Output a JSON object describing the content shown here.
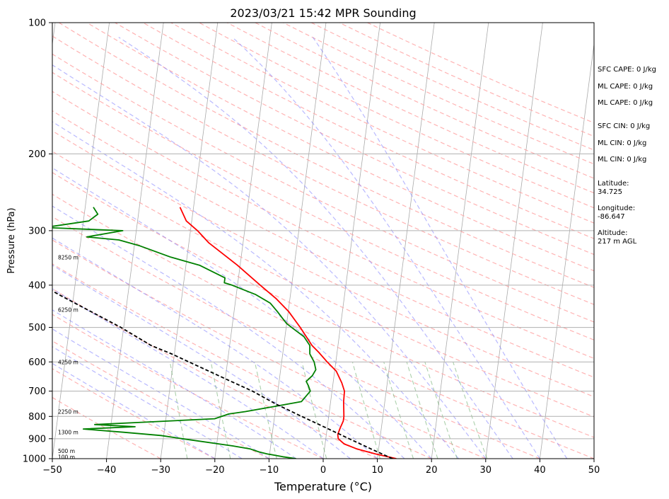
{
  "chart_data": {
    "type": "line",
    "title": "2023/03/21 15:42 MPR Sounding",
    "xlabel": "Temperature (°C)",
    "ylabel": "Pressure (hPa)",
    "xlim": [
      -50,
      50
    ],
    "ylim": [
      1000,
      100
    ],
    "y_scale": "log",
    "skew": "skew-T log-p",
    "x_ticks": [
      -50,
      -40,
      -30,
      -20,
      -10,
      0,
      10,
      20,
      30,
      40,
      50
    ],
    "x_tick_labels": [
      "−50",
      "−40",
      "−30",
      "−20",
      "−10",
      "0",
      "10",
      "20",
      "30",
      "40",
      "50"
    ],
    "y_ticks": [
      1000,
      900,
      800,
      700,
      600,
      500,
      400,
      300,
      200,
      100
    ],
    "y_tick_labels": [
      "1000",
      "900",
      "800",
      "700",
      "600",
      "500",
      "400",
      "300",
      "200",
      "100"
    ],
    "grid": true,
    "height_labels": [
      {
        "p": 990,
        "text": "100 m"
      },
      {
        "p": 960,
        "text": "500 m"
      },
      {
        "p": 870,
        "text": "1300 m"
      },
      {
        "p": 780,
        "text": "2250 m"
      },
      {
        "p": 600,
        "text": "4250 m"
      },
      {
        "p": 455,
        "text": "6250 m"
      },
      {
        "p": 345,
        "text": "8250 m"
      }
    ],
    "series": [
      {
        "key": "temperature",
        "color": "#ff0000",
        "points": [
          [
            13.5,
            1000
          ],
          [
            9.5,
            975
          ],
          [
            6.0,
            950
          ],
          [
            3.5,
            925
          ],
          [
            2.3,
            900
          ],
          [
            2.1,
            880
          ],
          [
            2.4,
            850
          ],
          [
            2.8,
            820
          ],
          [
            2.8,
            800
          ],
          [
            2.6,
            770
          ],
          [
            2.4,
            740
          ],
          [
            2.3,
            700
          ],
          [
            1.6,
            670
          ],
          [
            0.3,
            630
          ],
          [
            -1.6,
            600
          ],
          [
            -3.4,
            570
          ],
          [
            -4.8,
            550
          ],
          [
            -7.4,
            500
          ],
          [
            -9.9,
            460
          ],
          [
            -12.5,
            430
          ],
          [
            -15.8,
            400
          ],
          [
            -20.5,
            360
          ],
          [
            -26.3,
            320
          ],
          [
            -28.7,
            300
          ],
          [
            -31.0,
            285
          ],
          [
            -32.5,
            265
          ]
        ]
      },
      {
        "key": "dewpoint",
        "color": "#008000",
        "points": [
          [
            -5.0,
            1000
          ],
          [
            -7.5,
            990
          ],
          [
            -10.5,
            975
          ],
          [
            -12.0,
            965
          ],
          [
            -13.7,
            950
          ],
          [
            -17.0,
            935
          ],
          [
            -26.5,
            900
          ],
          [
            -30.5,
            885
          ],
          [
            -37.5,
            870
          ],
          [
            -45.0,
            855
          ],
          [
            -35.5,
            845
          ],
          [
            -43.0,
            835
          ],
          [
            -34.0,
            825
          ],
          [
            -21.0,
            810
          ],
          [
            -18.5,
            790
          ],
          [
            -15.5,
            780
          ],
          [
            -10.5,
            760
          ],
          [
            -5.4,
            740
          ],
          [
            -4.0,
            700
          ],
          [
            -4.5,
            680
          ],
          [
            -5.0,
            665
          ],
          [
            -4.0,
            645
          ],
          [
            -3.5,
            625
          ],
          [
            -4.0,
            600
          ],
          [
            -5.0,
            575
          ],
          [
            -5.2,
            550
          ],
          [
            -6.5,
            525
          ],
          [
            -8.5,
            505
          ],
          [
            -10.0,
            490
          ],
          [
            -11.0,
            475
          ],
          [
            -12.0,
            460
          ],
          [
            -13.5,
            440
          ],
          [
            -16.5,
            420
          ],
          [
            -21.0,
            400
          ],
          [
            -22.5,
            395
          ],
          [
            -22.5,
            385
          ],
          [
            -27.5,
            360
          ],
          [
            -33.0,
            345
          ],
          [
            -39.0,
            325
          ],
          [
            -43.0,
            315
          ],
          [
            -49.0,
            310
          ],
          [
            -42.5,
            300
          ],
          [
            -57.0,
            295
          ],
          [
            -49.0,
            285
          ],
          [
            -47.5,
            275
          ],
          [
            -48.5,
            265
          ]
        ]
      },
      {
        "key": "parcel",
        "color": "#000000",
        "dash": "dashed",
        "points": [
          [
            12.8,
            1000
          ],
          [
            8.6,
            950
          ],
          [
            4.3,
            900
          ],
          [
            -0.2,
            850
          ],
          [
            -5.0,
            800
          ],
          [
            -10.0,
            750
          ],
          [
            -14.7,
            700
          ],
          [
            -19.5,
            660
          ],
          [
            -24.5,
            620
          ],
          [
            -30.5,
            575
          ],
          [
            -34.5,
            550
          ],
          [
            -40.5,
            500
          ],
          [
            -52.0,
            425
          ],
          [
            -57.0,
            395
          ],
          [
            -61.0,
            375
          ],
          [
            -67.0,
            345
          ],
          [
            -73.0,
            320
          ],
          [
            -77.0,
            300
          ],
          [
            -85.5,
            265
          ]
        ]
      }
    ]
  },
  "stats": {
    "sfc_cape": "SFC CAPE: 0 J/kg",
    "ml_cape_1": "ML CAPE: 0 J/kg",
    "ml_cape_2": "ML CAPE: 0 J/kg",
    "sfc_cin": "SFC CIN: 0 J/kg",
    "ml_cin_1": "ML CIN: 0 J/kg",
    "ml_cin_2": "ML CIN: 0 J/kg",
    "latitude": "Latitude:\n34.725",
    "longitude": "Longitude:\n-86.647",
    "altitude": "Altitude:\n217 m AGL"
  }
}
